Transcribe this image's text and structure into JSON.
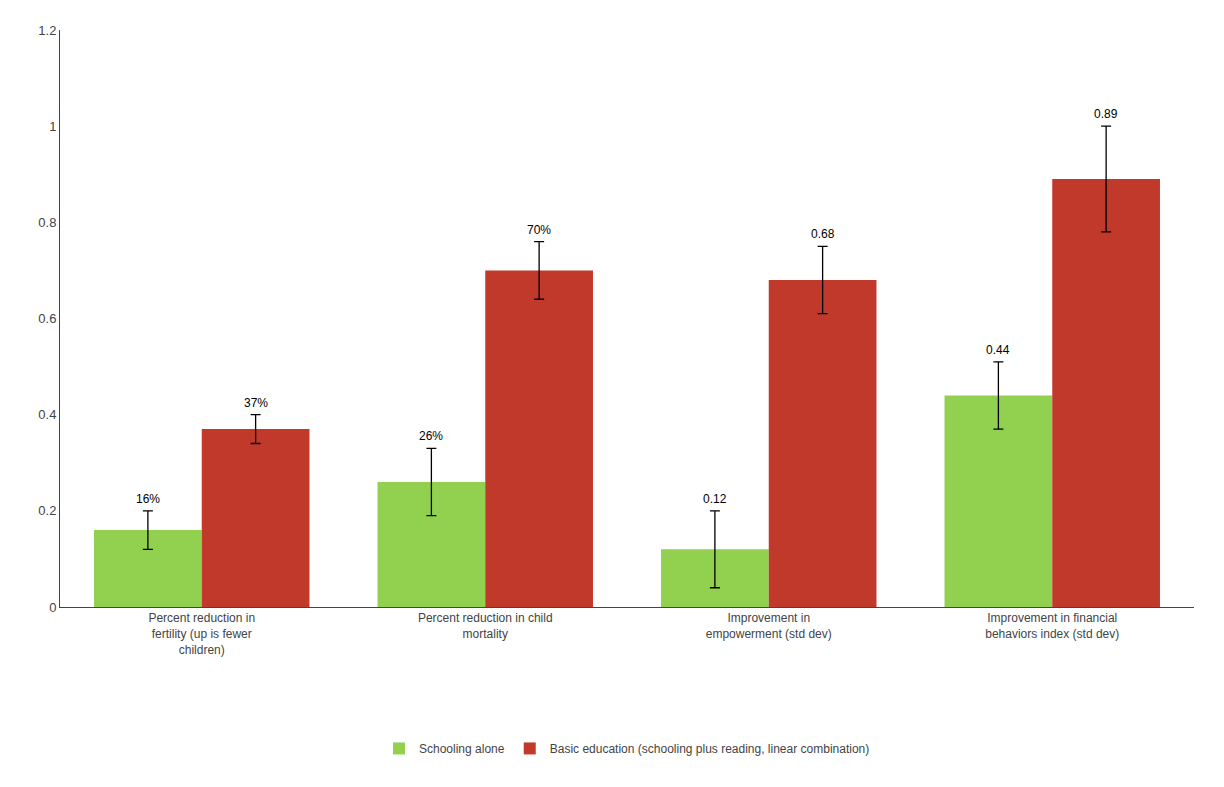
{
  "chart_data": {
    "type": "bar",
    "categories": [
      "Percent reduction in\nfertility (up is fewer\nchildren)",
      "Percent reduction in child\nmortality",
      "Improvement in\nempowerment (std dev)",
      "Improvement in financial\nbehaviors index (std dev)"
    ],
    "series": [
      {
        "name": "Schooling alone",
        "color": "#92d050",
        "values": [
          0.16,
          0.26,
          0.12,
          0.44
        ],
        "errors": [
          0.04,
          0.07,
          0.08,
          0.07
        ],
        "value_labels": [
          "16%",
          "26%",
          "0.12",
          "0.44"
        ]
      },
      {
        "name": "Basic education (schooling plus reading, linear combination)",
        "color": "#c0392b",
        "values": [
          0.37,
          0.7,
          0.68,
          0.89
        ],
        "errors": [
          0.03,
          0.06,
          0.07,
          0.11
        ],
        "value_labels": [
          "37%",
          "70%",
          "0.68",
          "0.89"
        ]
      }
    ],
    "ylim": [
      0,
      1.2
    ],
    "yticks": [
      0,
      0.2,
      0.4,
      0.6,
      0.8,
      1,
      1.2
    ],
    "grid": false,
    "legend": "bottom",
    "data_labels": true
  }
}
